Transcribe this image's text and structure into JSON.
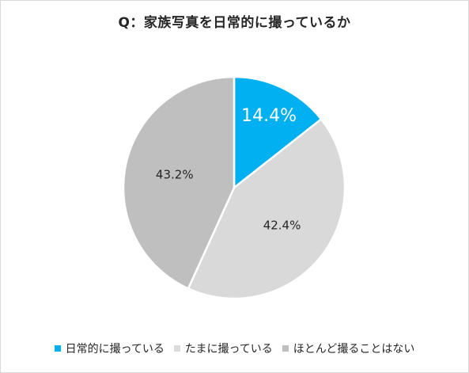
{
  "chart_data": {
    "type": "pie",
    "title": "Q：家族写真を日常的に撮っているか",
    "categories": [
      "日常的に撮っている",
      "たまに撮っている",
      "ほとんど撮ることはない"
    ],
    "values": [
      14.4,
      42.4,
      43.2
    ],
    "value_labels": [
      "14.4%",
      "42.4%",
      "43.2%"
    ],
    "colors": [
      "#00b0f0",
      "#d9d9d9",
      "#bfbfbf"
    ],
    "label_colors": [
      "#ffffff",
      "#262626",
      "#262626"
    ],
    "start_angle_deg": 0,
    "direction": "clockwise",
    "legend": "bottom"
  }
}
